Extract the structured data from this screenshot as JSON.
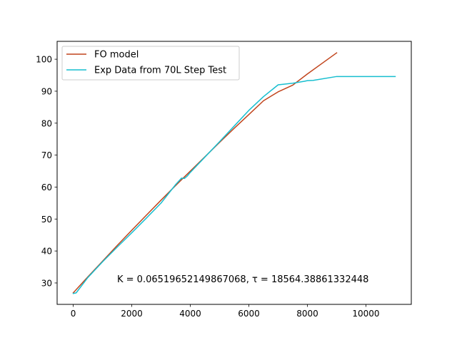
{
  "chart_data": {
    "type": "line",
    "title": "",
    "xlabel": "",
    "ylabel": "",
    "xlim": [
      -550,
      11550
    ],
    "ylim": [
      23.3,
      105.6
    ],
    "grid": false,
    "legend_placement": "top-left",
    "x_ticks": [
      0,
      2000,
      4000,
      6000,
      8000,
      10000
    ],
    "x_tick_labels": [
      "0",
      "2000",
      "4000",
      "6000",
      "8000",
      "10000"
    ],
    "y_ticks": [
      30,
      40,
      50,
      60,
      70,
      80,
      90,
      100
    ],
    "y_tick_labels": [
      "30",
      "40",
      "50",
      "60",
      "70",
      "80",
      "90",
      "100"
    ],
    "annotation": "K = 0.06519652149867068,  τ = 18564.38861332448",
    "series": [
      {
        "name": "FO model",
        "color": "#c1441c",
        "x": [
          0,
          500,
          1000,
          1500,
          2000,
          2500,
          3000,
          3500,
          4000,
          4500,
          5000,
          5500,
          6000,
          6500,
          7000,
          7500,
          8000,
          8500,
          9000
        ],
        "y": [
          26.9,
          31.9,
          36.8,
          41.7,
          46.5,
          51.2,
          55.9,
          60.5,
          65.0,
          69.5,
          74.0,
          78.4,
          82.7,
          87.0,
          89.8,
          91.9,
          95.4,
          98.7,
          102.0
        ]
      },
      {
        "name": "Exp Data from 70L Step Test",
        "color": "#17becf",
        "x": [
          0,
          100,
          500,
          1000,
          1500,
          2000,
          2500,
          3000,
          3500,
          3700,
          3800,
          3900,
          4000,
          4500,
          5000,
          5500,
          6000,
          6500,
          7000,
          7500,
          7700,
          7900,
          8000,
          8200,
          9000,
          11000
        ],
        "y": [
          26.7,
          26.9,
          31.7,
          36.6,
          41.2,
          45.7,
          50.3,
          55.0,
          60.8,
          62.8,
          62.7,
          63.5,
          64.6,
          69.4,
          74.2,
          79.1,
          84.0,
          88.3,
          92.0,
          92.5,
          92.8,
          93.1,
          93.3,
          93.4,
          94.6,
          94.6
        ]
      }
    ]
  }
}
